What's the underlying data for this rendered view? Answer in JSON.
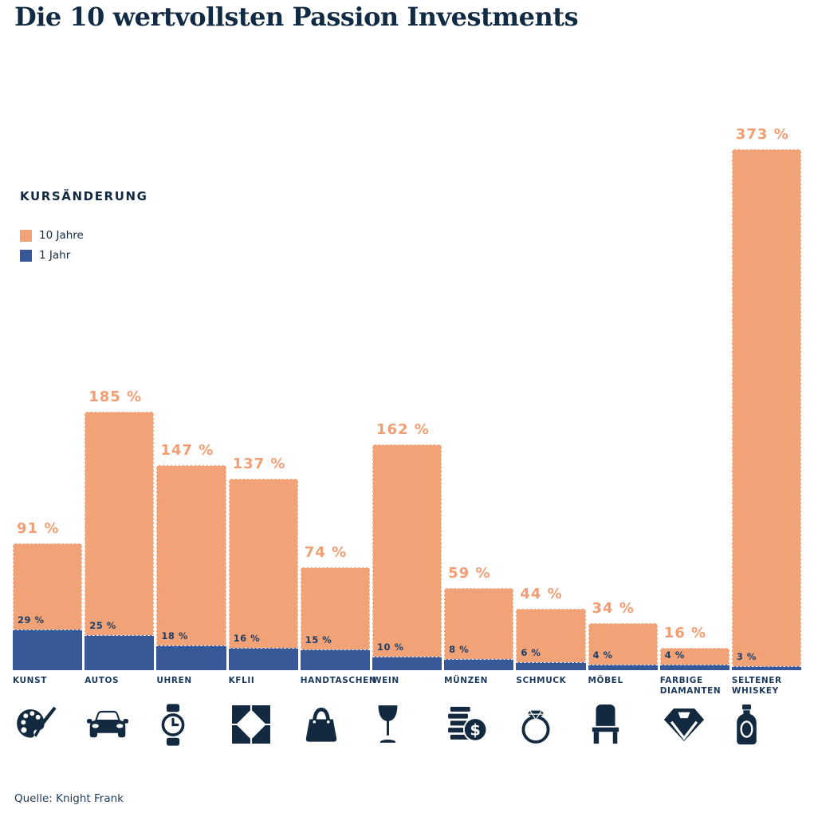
{
  "title": "Die 10 wertvollsten Passion Investments",
  "legend": {
    "title": "KURSÄNDERUNG",
    "items": [
      {
        "label": "10 Jahre",
        "color": "#F2A277"
      },
      {
        "label": "1 Jahr",
        "color": "#385898"
      }
    ]
  },
  "source": "Quelle: Knight Frank",
  "colors": {
    "bar_10y": "#F2A277",
    "bar_1y": "#385898",
    "navy_text": "#13293F",
    "value_label_10y": "#F29E74",
    "value_label_1y": "#1C3E66",
    "category_label": "#1C3A5C"
  },
  "chart_data": {
    "type": "bar",
    "title": "Die 10 wertvollsten Passion Investments",
    "subtitle": "KURSÄNDERUNG",
    "legend_position": "upper-left",
    "grid": false,
    "unit": "%",
    "value_suffix": " %",
    "ylim": [
      0,
      373
    ],
    "categories": [
      "KUNST",
      "AUTOS",
      "UHREN",
      "KFLII",
      "HANDTASCHEN",
      "WEIN",
      "MÜNZEN",
      "SCHMUCK",
      "MÖBEL",
      "FARBIGE DIAMANTEN",
      "SELTENER WHISKEY"
    ],
    "icons": [
      "palette-icon",
      "car-icon",
      "watch-icon",
      "kflii-icon",
      "handbag-icon",
      "wine-glass-icon",
      "coins-icon",
      "ring-icon",
      "chair-icon",
      "diamond-icon",
      "whiskey-bottle-icon"
    ],
    "series": [
      {
        "name": "10 Jahre",
        "color": "#F2A277",
        "values": [
          91,
          185,
          147,
          137,
          74,
          162,
          59,
          44,
          34,
          16,
          373
        ]
      },
      {
        "name": "1 Jahr",
        "color": "#385898",
        "values": [
          29,
          25,
          18,
          16,
          15,
          10,
          8,
          6,
          4,
          4,
          3
        ]
      }
    ]
  }
}
